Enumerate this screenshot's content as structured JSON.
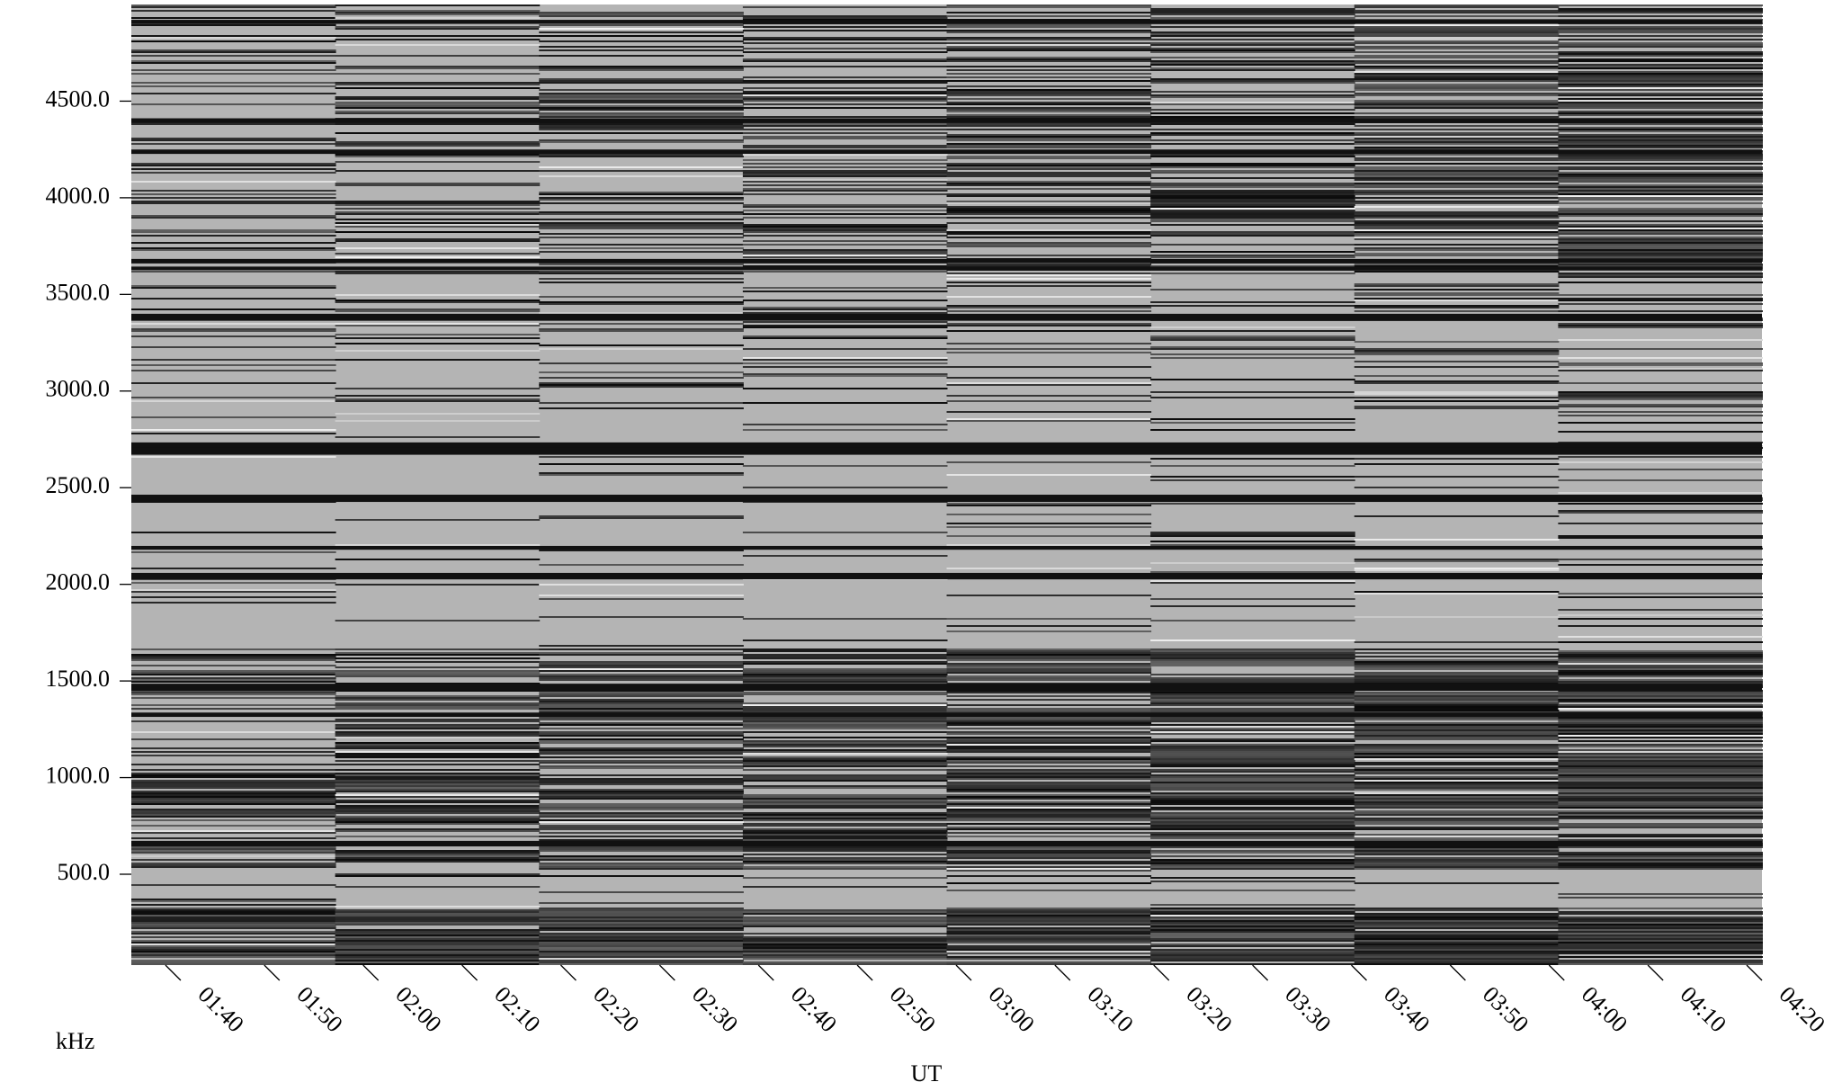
{
  "chart_data": {
    "type": "spectrogram",
    "y_label": "kHz",
    "x_label": "UT",
    "ylim": [
      30,
      5000
    ],
    "yticks": [
      {
        "value": 500,
        "label": "500.0"
      },
      {
        "value": 1000,
        "label": "1000.0"
      },
      {
        "value": 1500,
        "label": "1500.0"
      },
      {
        "value": 2000,
        "label": "2000.0"
      },
      {
        "value": 2500,
        "label": "2500.0"
      },
      {
        "value": 3000,
        "label": "3000.0"
      },
      {
        "value": 3500,
        "label": "3500.0"
      },
      {
        "value": 4000,
        "label": "4000.0"
      },
      {
        "value": 4500,
        "label": "4500.0"
      }
    ],
    "xlim": [
      "01:35",
      "04:20"
    ],
    "xticks": [
      "01:40",
      "01:50",
      "02:00",
      "02:10",
      "02:20",
      "02:30",
      "02:40",
      "02:50",
      "03:00",
      "03:10",
      "03:20",
      "03:30",
      "03:40",
      "03:50",
      "04:00",
      "04:10",
      "04:20"
    ],
    "colormap": "gray"
  }
}
